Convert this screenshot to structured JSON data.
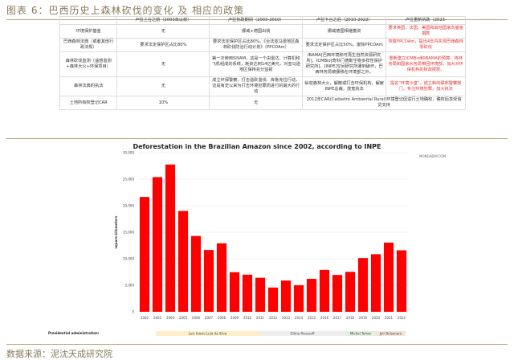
{
  "title": "图表 6：巴西历史上森林砍伐的变化 及 相应的政策",
  "table": {
    "headers": [
      "",
      "卢拉上台之前（2003年以前）",
      "卢拉执政期间（2003-2010）",
      "卢拉下台之后（2010-2022）",
      "卢拉重新执政（2023-"
    ],
    "rows": [
      [
        "环境保护基金",
        "无",
        "挪威+德国出钱",
        "挪威德国相继撤资",
        "要求英国、法国、美国和其他国家向基金捐款"
      ],
      [
        "巴西森林法典（或者其他行政法规）",
        "要求法定保护区占比80%",
        "要求法定保护区占比80%。《合法亚马逊地区森林砍伐防治行动计划》（PPCDAm）",
        "要求法定保护区占比50%，废除PPCDAm",
        "恢复PPCDAm，提出4年内实现巴西森林零砍伐"
      ],
      [
        "森林砍伐监测（遥感监测+森林大火+环保项目）",
        "无",
        "第一次使用SIVAM，这是一个由雷达、计算机和飞机组成的系统，耗资达到14亿美元，对亚马逊地区保持充分监视",
        "IBAMA[巴西环境和可再生自然资源研究所]、ICMBio[奇科门德斯生物多样性保护研究所]、[INPE]空间研究所遭到破坏，巴西林务局被挪移在环境部之外。",
        "重新建立ICMBio和IBAMA的预算，将林务局和国家水务局带回环境部，加大对环保机构的财政拨款。"
      ],
      [
        "森林法典的执法",
        "无",
        "成立环保警察，打击滥砍滥伐：库鲁克拉行动，这是有史以来为打击环境犯罪而进行的最大的行动",
        "纵容森林大火，解散或打击环保机构，解雇INPE总裁，放宽执法",
        "提名“环境沙皇”，成立新的联邦警察部门，专注环境犯罪，加大执法"
      ],
      [
        "土地所有权登记CAR",
        "10%",
        "无",
        "2012年CAR(Cadastro Ambiental Rural)环境登记促进行土地确权，确权后享受信贷支持"
      ]
    ]
  },
  "chart_data": {
    "type": "bar",
    "title": "Deforestation in the Brazilian Amazon since 2002, according to INPE",
    "source_mark": "MONGABAY.COM",
    "ylabel": "square kilometers",
    "xlabel": "",
    "ylim": [
      0,
      30000
    ],
    "yticks": [
      "0",
      "5,000",
      "10,000",
      "15,000",
      "20,000",
      "25,000",
      "30,000"
    ],
    "categories": [
      "2002",
      "2003",
      "2004",
      "2005",
      "2006",
      "2007",
      "2008",
      "2009",
      "2010",
      "2011",
      "2012",
      "2013",
      "2014",
      "2015",
      "2016",
      "2017",
      "2018",
      "2019",
      "2020",
      "2021",
      "2022"
    ],
    "values": [
      21651,
      25396,
      27772,
      19014,
      14286,
      11651,
      12911,
      7464,
      7000,
      6418,
      4571,
      5891,
      5012,
      6207,
      7893,
      6947,
      7536,
      10129,
      10851,
      13038,
      11594
    ],
    "bar_color": "#ff0000",
    "admin_label": "Presidential administration:",
    "admins": [
      {
        "name": "Luiz Inácio Lula da Silva",
        "from": "2003",
        "to": "2010",
        "color": "#fdf0c8"
      },
      {
        "name": "Dilma Rousseff",
        "from": "2011",
        "to": "2016",
        "color": "#eeeeee"
      },
      {
        "name": "Michel Temer",
        "from": "2016",
        "to": "2018",
        "color": "#e4efdc"
      },
      {
        "name": "Jair Bolsonaro",
        "from": "2019",
        "to": "2022",
        "color": "#f6e4d6"
      }
    ]
  },
  "footer": "数据来源：泥沈天成研究院"
}
